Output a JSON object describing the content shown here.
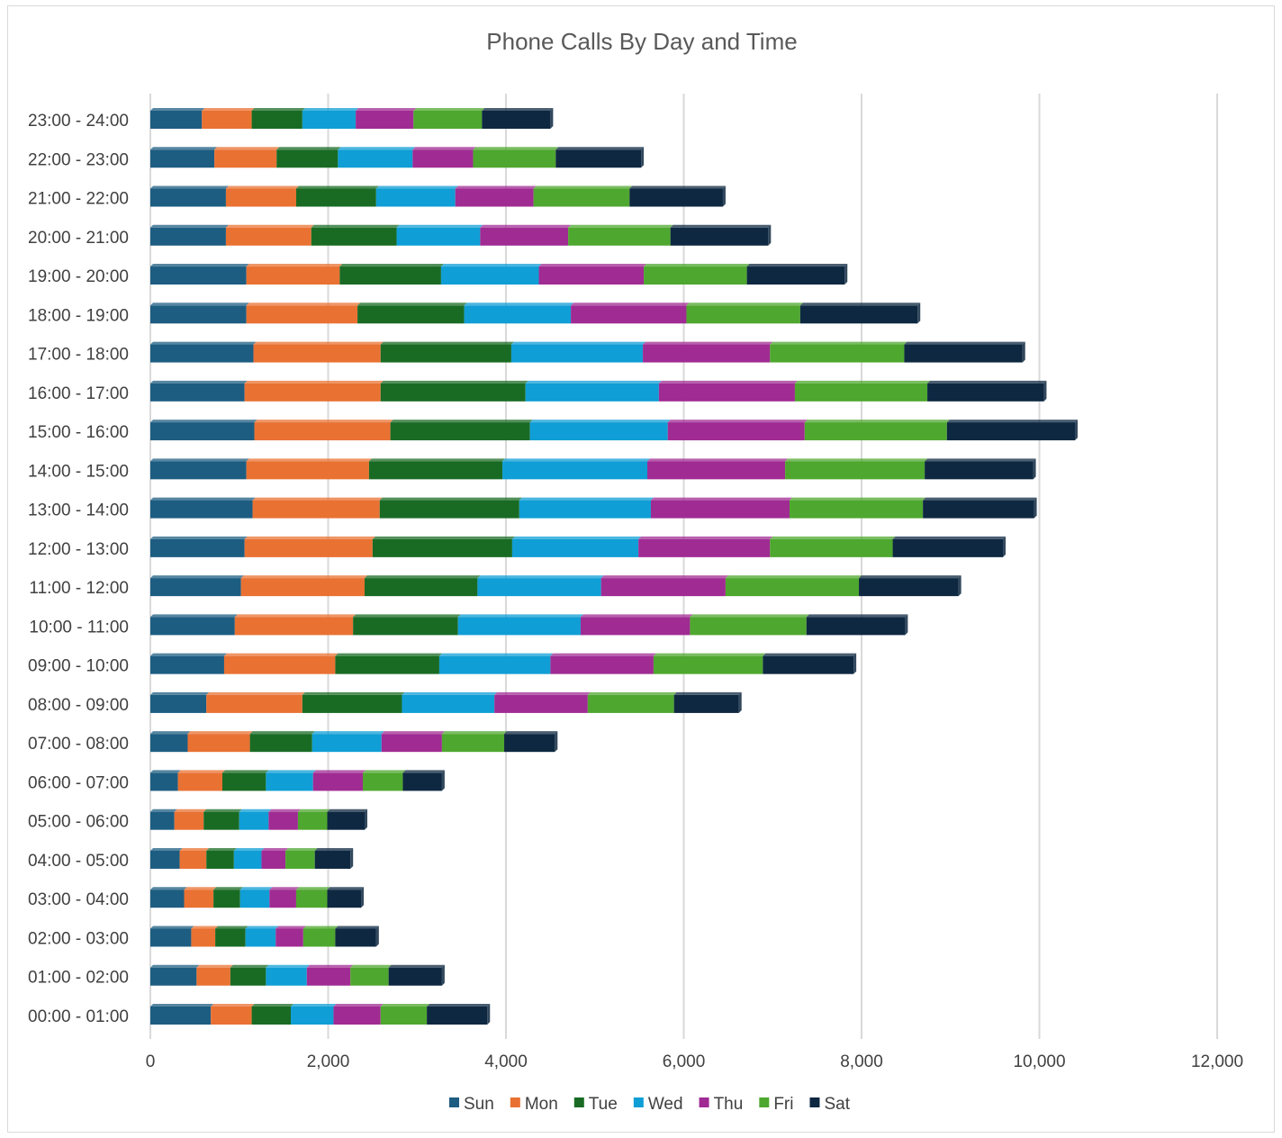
{
  "chart_data": {
    "type": "bar",
    "orientation": "horizontal",
    "stacked": true,
    "title": "Phone Calls By Day and Time",
    "xlabel": "",
    "ylabel": "",
    "xlim": [
      0,
      12000
    ],
    "x_ticks": [
      0,
      2000,
      4000,
      6000,
      8000,
      10000,
      12000
    ],
    "x_tick_labels": [
      "0",
      "2,000",
      "4,000",
      "6,000",
      "8,000",
      "10,000",
      "12,000"
    ],
    "grid": true,
    "legend_position": "bottom",
    "categories": [
      "00:00 - 01:00",
      "01:00 - 02:00",
      "02:00 - 03:00",
      "03:00 - 04:00",
      "04:00 - 05:00",
      "05:00 - 06:00",
      "06:00 - 07:00",
      "07:00 - 08:00",
      "08:00 - 09:00",
      "09:00 - 10:00",
      "10:00 - 11:00",
      "11:00 - 12:00",
      "12:00 - 13:00",
      "13:00 - 14:00",
      "14:00 - 15:00",
      "15:00 - 16:00",
      "16:00 - 17:00",
      "17:00 - 18:00",
      "18:00 - 19:00",
      "19:00 - 20:00",
      "20:00 - 21:00",
      "21:00 - 22:00",
      "22:00 - 23:00",
      "23:00 - 24:00"
    ],
    "series": [
      {
        "name": "Sun",
        "color": "#1d5d82",
        "values": [
          680,
          520,
          460,
          380,
          330,
          270,
          310,
          420,
          630,
          830,
          950,
          1020,
          1060,
          1150,
          1080,
          1170,
          1060,
          1160,
          1080,
          1080,
          850,
          850,
          720,
          580
        ]
      },
      {
        "name": "Mon",
        "color": "#e97132",
        "values": [
          460,
          380,
          270,
          330,
          300,
          330,
          500,
          700,
          1080,
          1250,
          1330,
          1390,
          1440,
          1430,
          1380,
          1530,
          1530,
          1430,
          1250,
          1050,
          960,
          790,
          700,
          560
        ]
      },
      {
        "name": "Tue",
        "color": "#196b24",
        "values": [
          440,
          400,
          340,
          300,
          310,
          400,
          490,
          700,
          1120,
          1170,
          1180,
          1270,
          1570,
          1570,
          1500,
          1570,
          1630,
          1470,
          1200,
          1140,
          960,
          900,
          690,
          570
        ]
      },
      {
        "name": "Wed",
        "color": "#0f9ed5",
        "values": [
          480,
          460,
          340,
          330,
          310,
          330,
          530,
          780,
          1040,
          1250,
          1380,
          1390,
          1420,
          1480,
          1630,
          1550,
          1500,
          1480,
          1200,
          1100,
          940,
          890,
          840,
          600
        ]
      },
      {
        "name": "Thu",
        "color": "#a02b93",
        "values": [
          530,
          490,
          310,
          300,
          270,
          330,
          560,
          680,
          1050,
          1160,
          1230,
          1400,
          1480,
          1560,
          1550,
          1540,
          1530,
          1430,
          1300,
          1180,
          990,
          880,
          680,
          650
        ]
      },
      {
        "name": "Fri",
        "color": "#4ea72e",
        "values": [
          520,
          430,
          360,
          350,
          330,
          330,
          450,
          700,
          970,
          1230,
          1310,
          1500,
          1380,
          1500,
          1570,
          1600,
          1490,
          1510,
          1280,
          1160,
          1150,
          1080,
          930,
          770
        ]
      },
      {
        "name": "Sat",
        "color": "#0e2841",
        "values": [
          680,
          600,
          460,
          380,
          400,
          420,
          440,
          570,
          730,
          1020,
          1110,
          1120,
          1240,
          1250,
          1220,
          1440,
          1310,
          1330,
          1320,
          1100,
          1100,
          1050,
          960,
          770
        ]
      }
    ]
  }
}
